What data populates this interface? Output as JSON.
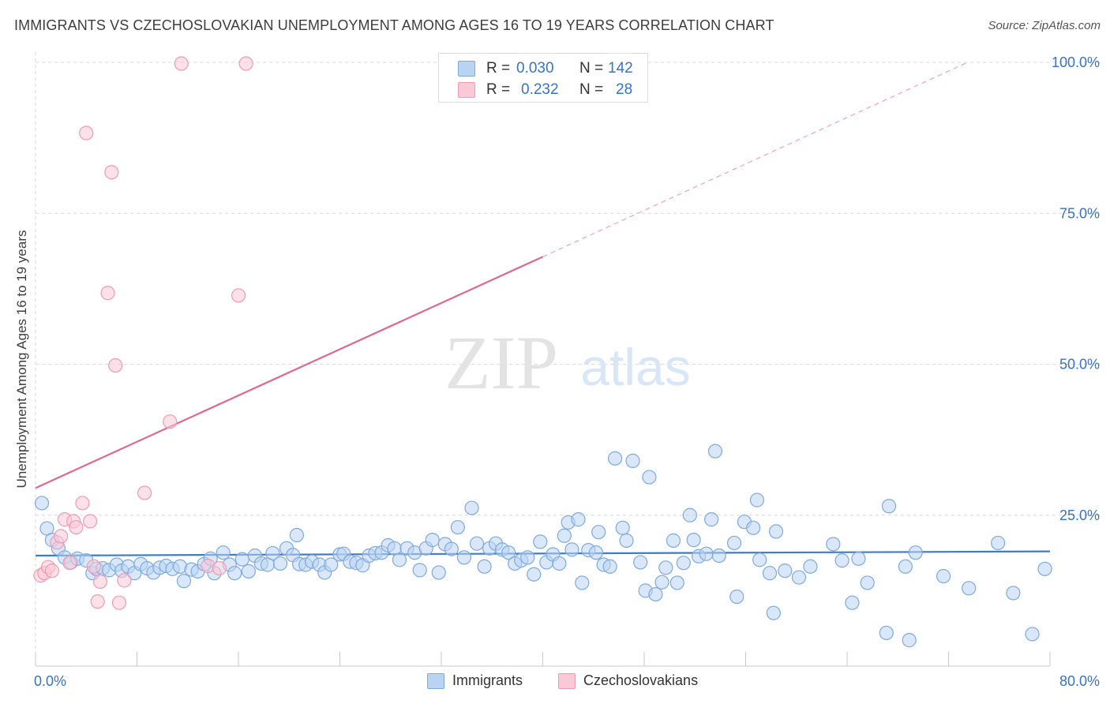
{
  "header": {
    "title": "IMMIGRANTS VS CZECHOSLOVAKIAN UNEMPLOYMENT AMONG AGES 16 TO 19 YEARS CORRELATION CHART",
    "source": "Source: ZipAtlas.com"
  },
  "watermark": {
    "zip": "ZIP",
    "atlas": "atlas"
  },
  "legend": {
    "rows": [
      {
        "r_label": "R =",
        "r_value": "0.030",
        "n_label": "N =",
        "n_value": "142",
        "color": "#8fb5e8"
      },
      {
        "r_label": "R =",
        "r_value": "0.232",
        "n_label": "N =",
        "n_value": "28",
        "color": "#f2a6bf"
      }
    ]
  },
  "bottom_legend": {
    "immigrants": "Immigrants",
    "czechoslovakians": "Czechoslovakians"
  },
  "colors": {
    "immigrants_fill": "#b9d3f2",
    "immigrants_stroke": "#7eaae0",
    "immigrants_line": "#3d7cc9",
    "czech_fill": "#f9c9d7",
    "czech_stroke": "#ef9bb6",
    "czech_line": "#e0688f",
    "tick_text": "#3a72c4",
    "grid": "#d9d9d9"
  },
  "chart_data": {
    "type": "scatter",
    "title": "IMMIGRANTS VS CZECHOSLOVAKIAN UNEMPLOYMENT AMONG AGES 16 TO 19 YEARS CORRELATION CHART",
    "xlabel": "",
    "ylabel": "Unemployment Among Ages 16 to 19 years",
    "xlim": [
      0,
      80
    ],
    "ylim": [
      0,
      100
    ],
    "x_tick_labels": [
      "0.0%",
      "80.0%"
    ],
    "y_tick_labels": [
      "25.0%",
      "50.0%",
      "75.0%",
      "100.0%"
    ],
    "y_ticks": [
      25,
      50,
      75,
      100
    ],
    "grid": true,
    "legend_position": "top-center",
    "series": [
      {
        "name": "Immigrants",
        "trend": {
          "x": [
            0,
            80
          ],
          "y": [
            18.3,
            19.0
          ]
        },
        "points": [
          [
            0.5,
            27
          ],
          [
            0.9,
            22.8
          ],
          [
            1.3,
            20.9
          ],
          [
            1.8,
            19.5
          ],
          [
            2.3,
            18
          ],
          [
            2.8,
            17.2
          ],
          [
            3.3,
            17.8
          ],
          [
            4.0,
            17.5
          ],
          [
            4.5,
            15.4
          ],
          [
            4.8,
            16.1
          ],
          [
            5.3,
            16.2
          ],
          [
            5.8,
            15.9
          ],
          [
            6.4,
            16.8
          ],
          [
            6.8,
            15.8
          ],
          [
            7.3,
            16.5
          ],
          [
            7.8,
            15.4
          ],
          [
            8.3,
            16.9
          ],
          [
            8.8,
            16.2
          ],
          [
            9.3,
            15.5
          ],
          [
            9.8,
            16.3
          ],
          [
            10.3,
            16.6
          ],
          [
            10.8,
            16.1
          ],
          [
            11.4,
            16.5
          ],
          [
            11.7,
            14.1
          ],
          [
            12.3,
            16
          ],
          [
            12.8,
            15.7
          ],
          [
            13.3,
            16.9
          ],
          [
            13.8,
            17.8
          ],
          [
            14.1,
            15.4
          ],
          [
            14.8,
            18.8
          ],
          [
            15.3,
            16.8
          ],
          [
            15.7,
            15.4
          ],
          [
            16.3,
            17.7
          ],
          [
            16.8,
            15.7
          ],
          [
            17.3,
            18.3
          ],
          [
            17.8,
            17
          ],
          [
            18.3,
            16.8
          ],
          [
            18.7,
            18.7
          ],
          [
            19.3,
            17
          ],
          [
            19.8,
            19.5
          ],
          [
            20.3,
            18.4
          ],
          [
            20.6,
            21.7
          ],
          [
            20.8,
            16.9
          ],
          [
            21.3,
            16.8
          ],
          [
            21.8,
            17.3
          ],
          [
            22.4,
            16.8
          ],
          [
            22.8,
            15.5
          ],
          [
            23.3,
            16.8
          ],
          [
            24.0,
            18.5
          ],
          [
            24.3,
            18.6
          ],
          [
            24.8,
            17.3
          ],
          [
            25.3,
            17.1
          ],
          [
            25.8,
            16.7
          ],
          [
            26.3,
            18.3
          ],
          [
            26.8,
            18.7
          ],
          [
            27.3,
            18.8
          ],
          [
            27.8,
            20
          ],
          [
            28.3,
            19.5
          ],
          [
            28.7,
            17.6
          ],
          [
            29.3,
            19.5
          ],
          [
            29.9,
            18.8
          ],
          [
            30.3,
            15.9
          ],
          [
            30.8,
            19.5
          ],
          [
            31.3,
            20.9
          ],
          [
            31.8,
            15.5
          ],
          [
            32.3,
            20.2
          ],
          [
            32.8,
            19.4
          ],
          [
            33.3,
            23
          ],
          [
            33.8,
            18
          ],
          [
            34.4,
            26.2
          ],
          [
            34.8,
            20.3
          ],
          [
            35.4,
            16.5
          ],
          [
            35.8,
            19.5
          ],
          [
            36.3,
            20.3
          ],
          [
            36.8,
            19.3
          ],
          [
            37.3,
            18.8
          ],
          [
            37.8,
            17
          ],
          [
            38.3,
            17.5
          ],
          [
            38.8,
            18
          ],
          [
            39.3,
            15.2
          ],
          [
            39.8,
            20.6
          ],
          [
            40.3,
            17.2
          ],
          [
            40.8,
            18.5
          ],
          [
            41.3,
            17
          ],
          [
            41.7,
            21.6
          ],
          [
            42.0,
            23.8
          ],
          [
            42.3,
            19.3
          ],
          [
            42.8,
            24.3
          ],
          [
            43.1,
            13.8
          ],
          [
            43.6,
            19.2
          ],
          [
            44.2,
            18.8
          ],
          [
            44.4,
            22.2
          ],
          [
            44.8,
            16.8
          ],
          [
            45.3,
            16.5
          ],
          [
            45.7,
            34.4
          ],
          [
            46.3,
            22.9
          ],
          [
            46.6,
            20.8
          ],
          [
            47.1,
            34
          ],
          [
            47.7,
            17.2
          ],
          [
            48.1,
            12.5
          ],
          [
            48.4,
            31.3
          ],
          [
            48.9,
            11.9
          ],
          [
            49.4,
            13.9
          ],
          [
            49.7,
            16.3
          ],
          [
            50.3,
            20.8
          ],
          [
            50.6,
            13.8
          ],
          [
            51.1,
            17.1
          ],
          [
            51.6,
            25
          ],
          [
            51.9,
            20.9
          ],
          [
            52.3,
            18.2
          ],
          [
            52.9,
            18.6
          ],
          [
            53.3,
            24.3
          ],
          [
            53.6,
            35.6
          ],
          [
            53.9,
            18.3
          ],
          [
            55.1,
            20.4
          ],
          [
            55.3,
            11.5
          ],
          [
            55.9,
            23.9
          ],
          [
            56.6,
            22.9
          ],
          [
            56.9,
            27.5
          ],
          [
            57.1,
            17.6
          ],
          [
            57.9,
            15.4
          ],
          [
            58.2,
            8.8
          ],
          [
            58.4,
            22.3
          ],
          [
            59.1,
            15.8
          ],
          [
            60.2,
            14.7
          ],
          [
            61.1,
            16.5
          ],
          [
            62.9,
            20.2
          ],
          [
            63.6,
            17.5
          ],
          [
            64.4,
            10.5
          ],
          [
            64.9,
            17.8
          ],
          [
            65.6,
            13.8
          ],
          [
            67.1,
            5.5
          ],
          [
            67.3,
            26.5
          ],
          [
            68.6,
            16.5
          ],
          [
            68.9,
            4.3
          ],
          [
            69.4,
            18.8
          ],
          [
            71.6,
            14.9
          ],
          [
            73.6,
            12.9
          ],
          [
            75.9,
            20.4
          ],
          [
            77.1,
            12.1
          ],
          [
            78.6,
            5.3
          ],
          [
            79.6,
            16.1
          ]
        ]
      },
      {
        "name": "Czechoslovakians",
        "trend": {
          "x": [
            0,
            40
          ],
          "y": [
            29.5,
            67.8
          ]
        },
        "trend_extension": {
          "x": [
            40,
            73.5
          ],
          "y": [
            67.8,
            100
          ]
        },
        "points": [
          [
            0.4,
            15
          ],
          [
            0.7,
            15.4
          ],
          [
            1.0,
            16.4
          ],
          [
            1.3,
            15.8
          ],
          [
            1.7,
            20.5
          ],
          [
            2.0,
            21.5
          ],
          [
            2.3,
            24.3
          ],
          [
            2.7,
            17.1
          ],
          [
            3.0,
            24.0
          ],
          [
            3.2,
            23.0
          ],
          [
            3.7,
            27.0
          ],
          [
            4.0,
            88.3
          ],
          [
            4.3,
            24.0
          ],
          [
            4.6,
            16.5
          ],
          [
            4.9,
            10.7
          ],
          [
            5.1,
            14.0
          ],
          [
            5.7,
            61.8
          ],
          [
            6.0,
            81.8
          ],
          [
            6.3,
            49.8
          ],
          [
            6.6,
            10.5
          ],
          [
            7.0,
            14.2
          ],
          [
            8.6,
            28.7
          ],
          [
            10.6,
            40.5
          ],
          [
            11.5,
            99.8
          ],
          [
            13.6,
            16.6
          ],
          [
            14.5,
            16.2
          ],
          [
            16.0,
            61.4
          ],
          [
            16.6,
            99.8
          ]
        ]
      }
    ]
  }
}
